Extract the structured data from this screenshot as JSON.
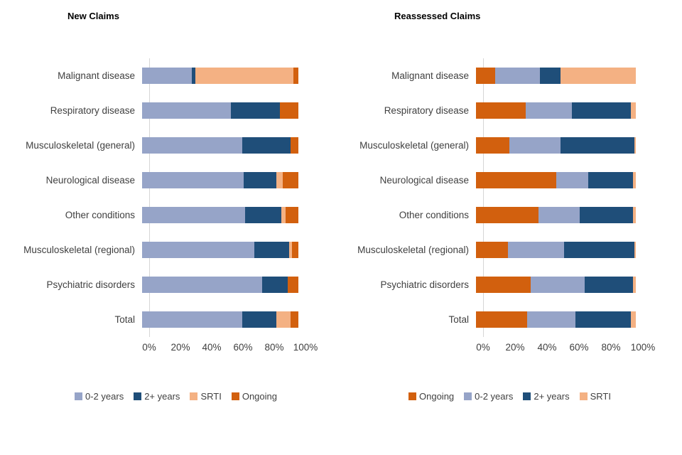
{
  "chart_data": [
    {
      "type": "bar",
      "orientation": "horizontal",
      "stacked": true,
      "title": "New Claims",
      "categories": [
        "Malignant disease",
        "Respiratory disease",
        "Musculoskeletal (general)",
        "Neurological disease",
        "Other conditions",
        "Musculoskeletal (regional)",
        "Psychiatric disorders",
        "Total"
      ],
      "series": [
        {
          "name": "0-2 years",
          "color": "#96A4C8",
          "values": [
            32,
            57,
            64,
            65,
            66,
            72,
            77,
            64
          ]
        },
        {
          "name": "2+ years",
          "color": "#1F4E79",
          "values": [
            2,
            31,
            31,
            21,
            23,
            22,
            16,
            22
          ]
        },
        {
          "name": "SRTI",
          "color": "#F4B183",
          "values": [
            63,
            0,
            0,
            4,
            3,
            2,
            0,
            9
          ]
        },
        {
          "name": "Ongoing",
          "color": "#D2600E",
          "values": [
            3,
            12,
            5,
            10,
            8,
            4,
            7,
            5
          ]
        }
      ],
      "xlim": [
        0,
        100
      ],
      "x_ticks": [
        "0%",
        "20%",
        "40%",
        "60%",
        "80%",
        "100%"
      ],
      "grid": false,
      "legend_position": "bottom"
    },
    {
      "type": "bar",
      "orientation": "horizontal",
      "stacked": true,
      "title": "Reassessed Claims",
      "categories": [
        "Malignant disease",
        "Respiratory disease",
        "Musculoskeletal (general)",
        "Neurological disease",
        "Other conditions",
        "Musculoskeletal (regional)",
        "Psychiatric disorders",
        "Total"
      ],
      "series": [
        {
          "name": "Ongoing",
          "color": "#D2600E",
          "values": [
            12,
            31,
            21,
            50,
            39,
            20,
            34,
            32
          ]
        },
        {
          "name": "0-2 years",
          "color": "#96A4C8",
          "values": [
            28,
            29,
            32,
            20,
            26,
            35,
            34,
            30
          ]
        },
        {
          "name": "2+ years",
          "color": "#1F4E79",
          "values": [
            13,
            37,
            46,
            28,
            33,
            44,
            30,
            35
          ]
        },
        {
          "name": "SRTI",
          "color": "#F4B183",
          "values": [
            47,
            3,
            1,
            2,
            2,
            1,
            2,
            3
          ]
        }
      ],
      "xlim": [
        0,
        100
      ],
      "x_ticks": [
        "0%",
        "20%",
        "40%",
        "60%",
        "80%",
        "100%"
      ],
      "grid": false,
      "legend_position": "bottom"
    }
  ]
}
